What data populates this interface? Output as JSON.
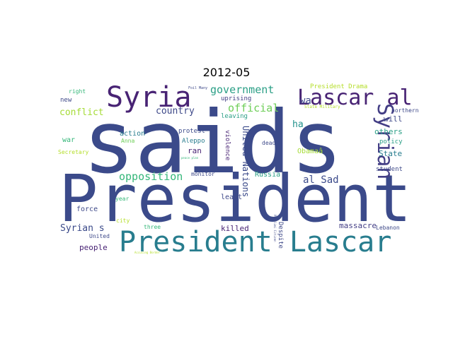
{
  "title": "2012-05",
  "colors": {
    "navy": "#3b4a8a",
    "indigo": "#433e85",
    "purple": "#482374",
    "teal": "#287d8e",
    "tealgreen": "#21918c",
    "green": "#35b779",
    "lightgreen": "#6ece58",
    "yellow": "#b5de2b",
    "dark": "#3e4989"
  },
  "words": [
    "saids",
    "President",
    "President Lascar",
    "Syria",
    "Lascar al",
    "Syrian",
    "government",
    "official",
    "conflict",
    "country",
    "opposition",
    "al Sad",
    "United Nations",
    "wa",
    "ha",
    "will",
    "others",
    "policy",
    "State",
    "northern",
    "student",
    "Lebanon",
    "massacre",
    "Despite",
    "killed",
    "Russia",
    "Obamaâ",
    "dead",
    "leaving",
    "uprising",
    "violence",
    "least",
    "monitor",
    "ran",
    "Aleppo",
    "protest",
    "action",
    "Anna",
    "war",
    "new",
    "right",
    "Secretary",
    "force",
    "year",
    "city",
    "three",
    "United",
    "people",
    "Syrian s",
    "President Drama",
    "State Military",
    "Foil Many",
    "peace plan",
    "Accusing Border",
    "Paralimi Citizen"
  ]
}
